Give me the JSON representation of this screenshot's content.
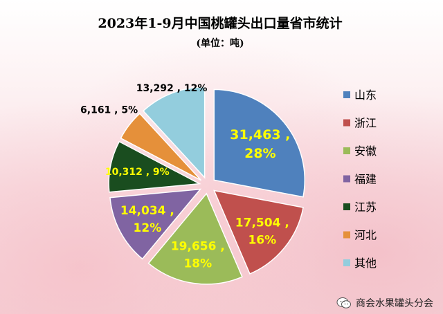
{
  "title": "2023年1-9月中国桃罐头出口量省市统计",
  "subtitle": "(单位：吨)",
  "watermark": "商会水果罐头分会",
  "chart_data": {
    "type": "pie",
    "title": "2023年1-9月中国桃罐头出口量省市统计",
    "subtitle": "(单位：吨)",
    "legend_position": "right",
    "exploded": true,
    "slices": [
      {
        "name": "山东",
        "value": 31463,
        "percent": "28%",
        "value_text": "31,463 ,",
        "label_color": "#ffff00",
        "color": "#4f81bd"
      },
      {
        "name": "浙江",
        "value": 17504,
        "percent": "16%",
        "value_text": "17,504 ,",
        "label_color": "#ffff00",
        "color": "#c0504d"
      },
      {
        "name": "安徽",
        "value": 19656,
        "percent": "18%",
        "value_text": "19,656 ,",
        "label_color": "#ffff00",
        "color": "#9bbb59"
      },
      {
        "name": "福建",
        "value": 14034,
        "percent": "12%",
        "value_text": "14,034 ,",
        "label_color": "#ffff00",
        "color": "#8064a2"
      },
      {
        "name": "江苏",
        "value": 10312,
        "percent": "9%",
        "value_text": "10,312 , 9%",
        "label_color": "#ffff00",
        "color": "#1a4d1f"
      },
      {
        "name": "河北",
        "value": 6161,
        "percent": "5%",
        "value_text": "6,161 , 5%",
        "label_color": "#000000",
        "color": "#e5903a"
      },
      {
        "name": "其他",
        "value": 13292,
        "percent": "12%",
        "value_text": "13,292 , 12%",
        "label_color": "#000000",
        "color": "#93cddd"
      }
    ]
  }
}
